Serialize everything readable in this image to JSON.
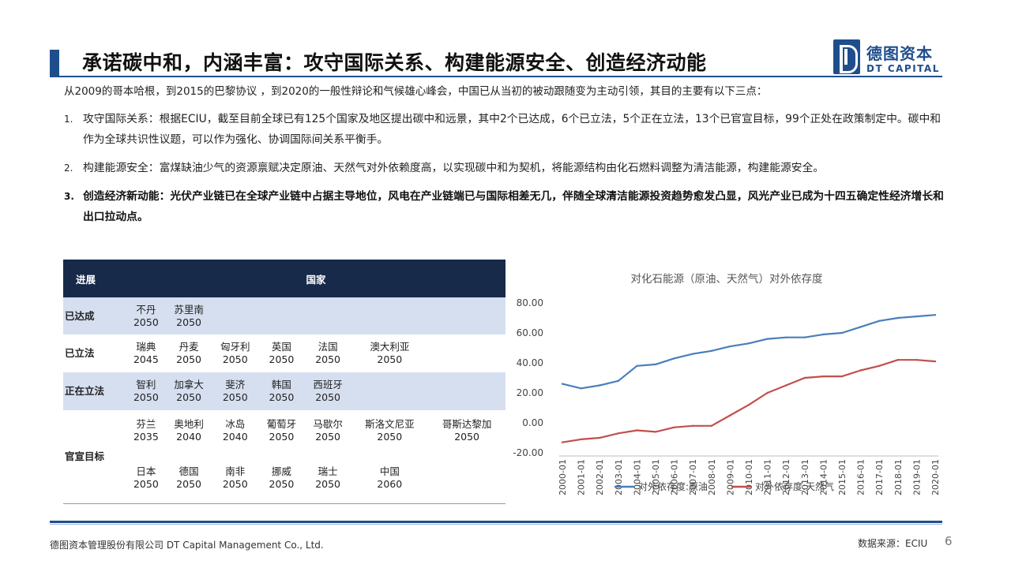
{
  "header": {
    "title": "承诺碳中和，内涵丰富：攻守国际关系、构建能源安全、创造经济动能",
    "logo_cn": "德图资本",
    "logo_en": "DT CAPITAL"
  },
  "intro": "从2009的哥本哈根，到2015的巴黎协议 ，到2020的一般性辩论和气候雄心峰会，中国已从当初的被动跟随变为主动引领，其目的主要有以下三点：",
  "points": [
    {
      "num": "1.",
      "text": "攻守国际关系：根据ECIU，截至目前全球已有125个国家及地区提出碳中和远景，其中2个已达成，6个已立法，5个正在立法，13个已官宣目标，99个正处在政策制定中。碳中和作为全球共识性议题，可以作为强化、协调国际间关系平衡手。"
    },
    {
      "num": "2.",
      "text": "构建能源安全：富煤缺油少气的资源禀赋决定原油、天然气对外依赖度高，以实现碳中和为契机，将能源结构由化石燃料调整为清洁能源，构建能源安全。"
    },
    {
      "num": "3.",
      "text": "创造经济新动能：光伏产业链已在全球产业链中占据主导地位，风电在产业链端已与国际相差无几，伴随全球清洁能源投资趋势愈发凸显，风光产业已成为十四五确定性经济增长和出口拉动点。"
    }
  ],
  "table": {
    "headers": [
      "进展",
      "国家"
    ],
    "rows": [
      {
        "label": "已达成",
        "countries": [
          {
            "name": "不丹",
            "year": "2050"
          },
          {
            "name": "苏里南",
            "year": "2050"
          }
        ]
      },
      {
        "label": "已立法",
        "countries": [
          {
            "name": "瑞典",
            "year": "2045"
          },
          {
            "name": "丹麦",
            "year": "2050"
          },
          {
            "name": "匈牙利",
            "year": "2050"
          },
          {
            "name": "英国",
            "year": "2050"
          },
          {
            "name": "法国",
            "year": "2050"
          },
          {
            "name": "澳大利亚",
            "year": "2050"
          }
        ]
      },
      {
        "label": "正在立法",
        "countries": [
          {
            "name": "智利",
            "year": "2050"
          },
          {
            "name": "加拿大",
            "year": "2050"
          },
          {
            "name": "斐济",
            "year": "2050"
          },
          {
            "name": "韩国",
            "year": "2050"
          },
          {
            "name": "西班牙",
            "year": "2050"
          }
        ]
      },
      {
        "label": "官宣目标",
        "countries": [
          {
            "name": "芬兰",
            "year": "2035"
          },
          {
            "name": "奥地利",
            "year": "2040"
          },
          {
            "name": "冰岛",
            "year": "2040"
          },
          {
            "name": "葡萄牙",
            "year": "2050"
          },
          {
            "name": "马歇尔",
            "year": "2050"
          },
          {
            "name": "斯洛文尼亚",
            "year": "2050"
          },
          {
            "name": "哥斯达黎加",
            "year": "2050"
          },
          {
            "name": "日本",
            "year": "2050"
          },
          {
            "name": "德国",
            "year": "2050"
          },
          {
            "name": "南非",
            "year": "2050"
          },
          {
            "name": "挪威",
            "year": "2050"
          },
          {
            "name": "瑞士",
            "year": "2050"
          },
          {
            "name": "中国",
            "year": "2060"
          }
        ]
      }
    ]
  },
  "chart_data": {
    "type": "line",
    "title": "对化石能源（原油、天然气）对外依存度",
    "x": [
      "2000-01",
      "2001-01",
      "2002-01",
      "2003-01",
      "2004-01",
      "2005-01",
      "2006-01",
      "2007-01",
      "2008-01",
      "2009-01",
      "2010-01",
      "2011-01",
      "2012-01",
      "2013-01",
      "2014-01",
      "2015-01",
      "2016-01",
      "2017-01",
      "2018-01",
      "2019-01",
      "2020-01"
    ],
    "ylim": [
      -20,
      80
    ],
    "yticks": [
      "80.00",
      "60.00",
      "40.00",
      "20.00",
      "0.00",
      "-20.00"
    ],
    "series": [
      {
        "name": "对外依存度:原油",
        "color": "#4a7ebb",
        "values": [
          26,
          23,
          25,
          28,
          38,
          39,
          43,
          46,
          48,
          51,
          53,
          56,
          57,
          57,
          59,
          60,
          64,
          68,
          70,
          71,
          72
        ]
      },
      {
        "name": "对外依存度:天然气",
        "color": "#c0504d",
        "values": [
          -13,
          -11,
          -10,
          -7,
          -5,
          -6,
          -3,
          -2,
          -2,
          5,
          12,
          20,
          25,
          30,
          31,
          31,
          35,
          38,
          42,
          42,
          41
        ]
      }
    ],
    "legend": "bottom"
  },
  "footer": {
    "company": "德图资本管理股份有限公司 DT Capital Management Co., Ltd.",
    "source": "数据来源：ECIU",
    "page": "6"
  }
}
